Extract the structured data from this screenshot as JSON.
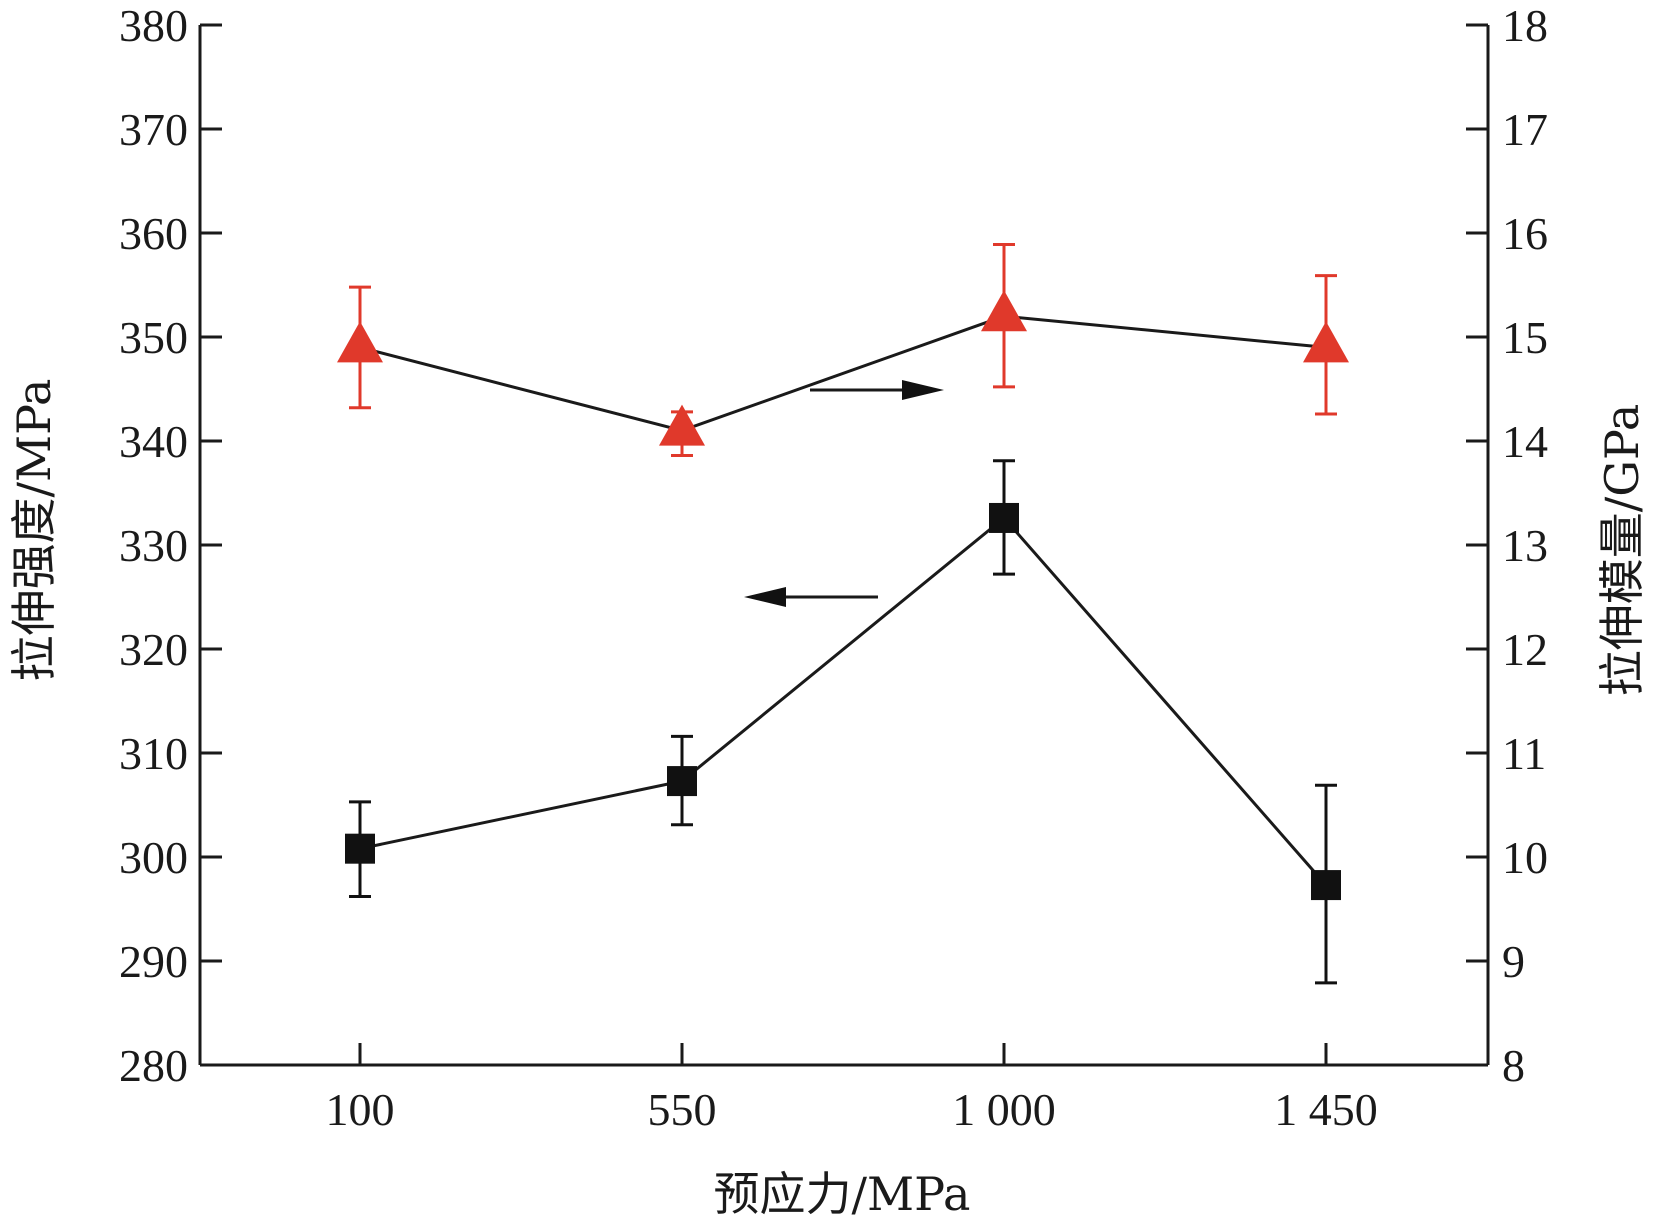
{
  "chart_data": {
    "type": "line",
    "xlabel": "预应力/MPa",
    "ylabel_left": "拉伸强度/MPa",
    "ylabel_right": "拉伸模量/GPa",
    "categories": [
      "100",
      "550",
      "1 000",
      "1 450"
    ],
    "x": [
      100,
      550,
      1000,
      1450
    ],
    "y_left": {
      "ylim": [
        280,
        380
      ],
      "ticks": [
        "280",
        "290",
        "300",
        "310",
        "320",
        "330",
        "340",
        "350",
        "360",
        "370",
        "380"
      ]
    },
    "y_right": {
      "ylim": [
        8,
        18
      ],
      "ticks": [
        "8",
        "9",
        "10",
        "11",
        "12",
        "13",
        "14",
        "15",
        "16",
        "17",
        "18"
      ]
    },
    "series": [
      {
        "axis": "left",
        "marker": "square",
        "color": "#111111",
        "values": [
          300.8,
          307.3,
          332.6,
          297.3
        ],
        "err_low": [
          296.2,
          303.1,
          327.2,
          287.9
        ],
        "err_high": [
          305.3,
          311.6,
          338.1,
          306.9
        ],
        "arrow": "left"
      },
      {
        "axis": "right",
        "marker": "triangle",
        "color": "#e0392b",
        "values": [
          14.9,
          14.1,
          15.2,
          14.9
        ],
        "err_low": [
          14.32,
          13.86,
          14.52,
          14.26
        ],
        "err_high": [
          15.48,
          14.28,
          15.89,
          15.59
        ],
        "arrow": "right"
      }
    ],
    "grid": false,
    "legend": "none"
  }
}
